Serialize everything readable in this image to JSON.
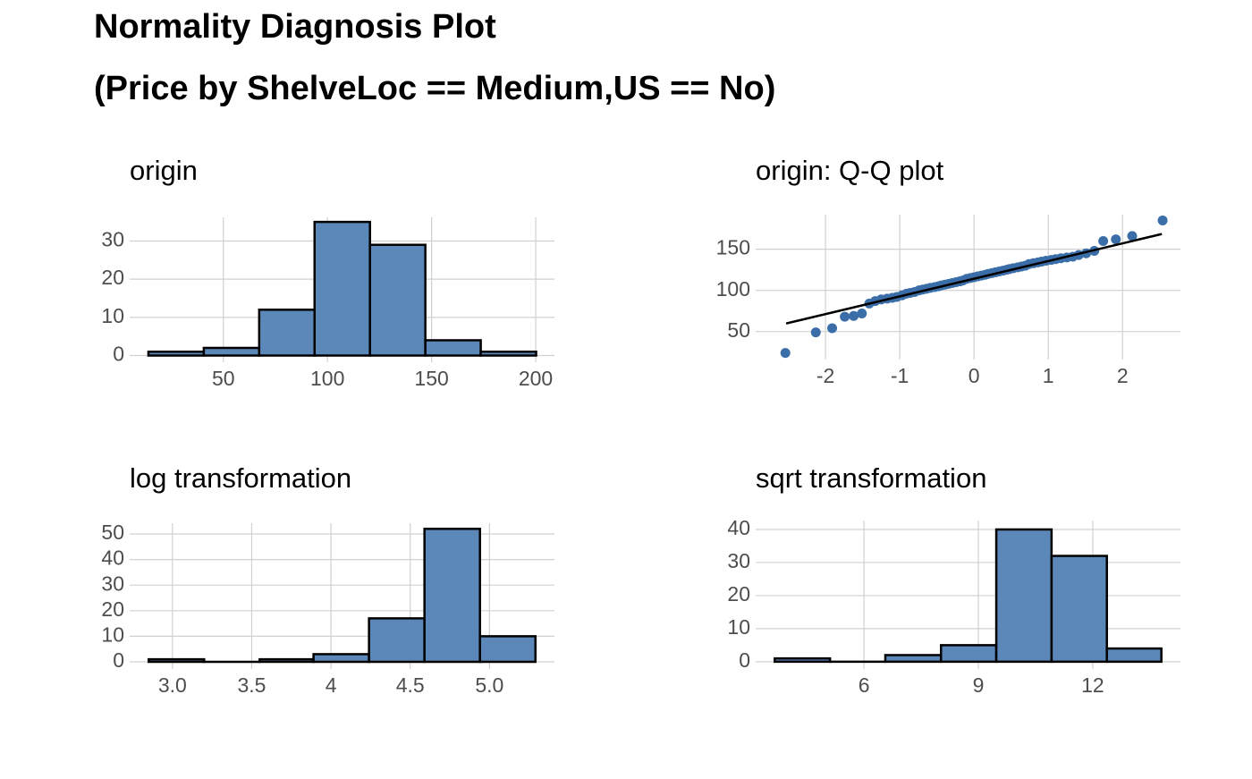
{
  "title": "Normality Diagnosis Plot",
  "subtitle": "(Price by ShelveLoc == Medium,US == No)",
  "chart_data": [
    {
      "type": "histogram",
      "title": "origin",
      "bins": [
        14,
        40.6,
        67.2,
        93.8,
        120.4,
        147,
        173.6,
        200.2
      ],
      "values": [
        1,
        2,
        12,
        35,
        29,
        4,
        1
      ],
      "color": "#5b88b8",
      "edgecolor": "#000000",
      "xlim": [
        5,
        209
      ],
      "ylim": [
        -1.75,
        36.2
      ],
      "xticks": [
        50,
        100,
        150,
        200
      ],
      "yticks": [
        0,
        10,
        20,
        30
      ],
      "grid": true
    },
    {
      "type": "scatter",
      "title": "origin: Q-Q plot",
      "x": [
        -2.54,
        -2.13,
        -1.91,
        -1.74,
        -1.62,
        -1.51,
        -1.41,
        -1.33,
        -1.25,
        -1.17,
        -1.1,
        -1.04,
        -0.97,
        -0.91,
        -0.86,
        -0.8,
        -0.74,
        -0.69,
        -0.64,
        -0.59,
        -0.53,
        -0.48,
        -0.44,
        -0.39,
        -0.34,
        -0.29,
        -0.24,
        -0.19,
        -0.15,
        -0.1,
        -0.05,
        0,
        0.05,
        0.1,
        0.15,
        0.19,
        0.24,
        0.29,
        0.34,
        0.39,
        0.44,
        0.48,
        0.53,
        0.59,
        0.64,
        0.69,
        0.74,
        0.8,
        0.86,
        0.91,
        0.97,
        1.04,
        1.1,
        1.17,
        1.25,
        1.33,
        1.41,
        1.51,
        1.62,
        1.74,
        1.91,
        2.13,
        2.54
      ],
      "values": [
        24,
        49,
        54,
        68,
        69,
        72,
        84,
        87,
        89,
        90,
        91,
        92,
        94,
        96,
        97,
        98,
        100,
        101,
        102,
        103,
        104,
        105,
        106,
        107,
        108,
        109,
        110,
        111,
        112,
        114,
        115,
        116,
        117,
        118,
        119,
        120,
        121,
        122,
        123,
        124,
        125,
        126,
        127,
        128,
        129,
        130,
        132,
        133,
        134,
        135,
        136,
        137,
        138,
        139,
        140,
        141,
        143,
        145,
        148,
        160,
        162,
        166,
        185
      ],
      "color": "#3b6ea8",
      "fit_line": {
        "x": [
          -2.53,
          2.53
        ],
        "y": [
          59.8,
          168.5
        ],
        "color": "#000000"
      },
      "xlim": [
        -2.94,
        2.78
      ],
      "ylim": [
        16,
        192
      ],
      "xticks": [
        -2,
        -1,
        0,
        1,
        2
      ],
      "yticks": [
        50,
        100,
        150
      ],
      "grid": true
    },
    {
      "type": "histogram",
      "title": "log transformation",
      "bins": [
        2.85,
        3.2,
        3.55,
        3.89,
        4.24,
        4.59,
        4.94,
        5.29
      ],
      "values": [
        1,
        0,
        1,
        3,
        17,
        52,
        10
      ],
      "color": "#5b88b8",
      "edgecolor": "#000000",
      "xlim": [
        2.73,
        5.41
      ],
      "ylim": [
        -2.8,
        54.2
      ],
      "xticks": [
        {
          "value": 3,
          "label": "3.0"
        },
        3.5,
        4,
        4.5,
        {
          "value": 5,
          "label": "5.0"
        }
      ],
      "yticks": [
        0,
        10,
        20,
        30,
        40,
        50
      ],
      "grid": true
    },
    {
      "type": "histogram",
      "title": "sqrt transformation",
      "bins": [
        3.66,
        5.11,
        6.56,
        8.02,
        9.47,
        10.92,
        12.37,
        13.8
      ],
      "values": [
        1,
        0,
        2,
        5,
        40,
        32,
        4
      ],
      "color": "#5b88b8",
      "edgecolor": "#000000",
      "xlim": [
        3.16,
        14.3
      ],
      "ylim": [
        -2.2,
        42.7
      ],
      "xticks": [
        6,
        9,
        12
      ],
      "yticks": [
        0,
        10,
        20,
        30,
        40
      ],
      "grid": true
    }
  ]
}
